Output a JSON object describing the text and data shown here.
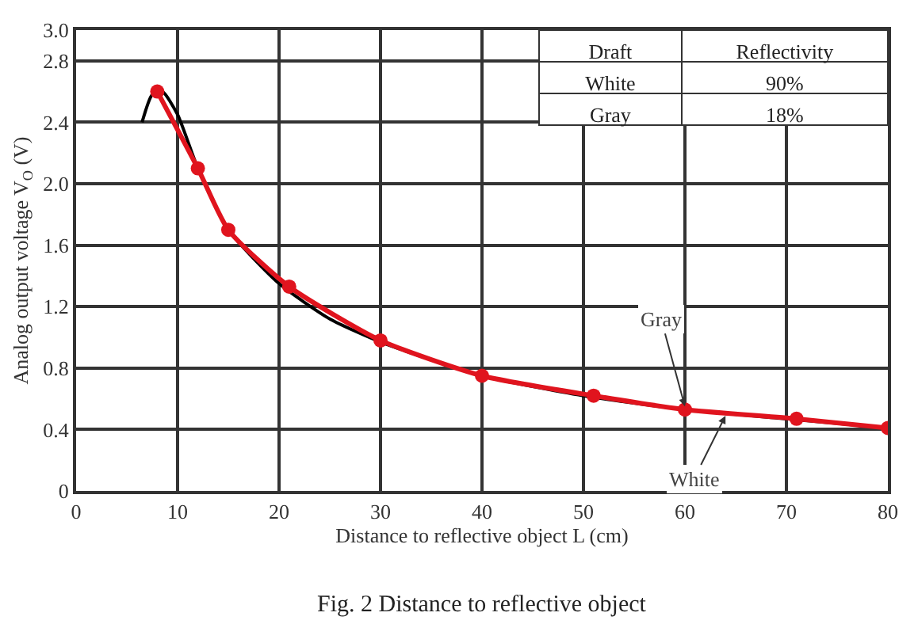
{
  "chart_data": {
    "type": "line",
    "xlabel": "Distance to reflective object L (cm)",
    "ylabel": "Analog output voltage V$_{O}$ (V)",
    "series": [
      {
        "color": "#000000",
        "marker": "none",
        "line_style": "solid",
        "x": [
          6.5,
          7.5,
          8.5,
          10,
          12,
          15,
          20,
          25,
          30,
          40,
          50,
          60,
          70,
          80
        ],
        "values": [
          2.4,
          2.58,
          2.6,
          2.45,
          2.1,
          1.7,
          1.35,
          1.12,
          0.97,
          0.75,
          0.62,
          0.53,
          0.47,
          0.41
        ]
      },
      {
        "color": "#e0141e",
        "marker": "circle",
        "line_style": "solid",
        "x": [
          8,
          12,
          15,
          21,
          30,
          40,
          51,
          60,
          71,
          80
        ],
        "values": [
          2.6,
          2.1,
          1.7,
          1.33,
          0.98,
          0.75,
          0.62,
          0.53,
          0.47,
          0.41
        ]
      }
    ],
    "xlim": [
      0,
      80
    ],
    "xticks": [
      0,
      10,
      20,
      30,
      40,
      50,
      60,
      70,
      80
    ],
    "ylim": [
      0,
      3.0
    ],
    "yticks": [
      {
        "value": 0,
        "label": "0"
      },
      0.4,
      0.8,
      1.2,
      1.6,
      {
        "value": 2.0,
        "label": "2.0"
      },
      2.4,
      2.8,
      {
        "value": 3.0,
        "label": "3.0"
      }
    ],
    "grid": true,
    "legend": false,
    "annotations": [
      {
        "text": "Gray",
        "x": 60,
        "y": 0.55
      },
      {
        "text": "White",
        "x": 64,
        "y": 0.49
      },
      "Draft",
      "Reflectivity",
      "White",
      "90%",
      "Gray",
      "18%",
      "Fig. 2 Distance to reflective object"
    ]
  }
}
